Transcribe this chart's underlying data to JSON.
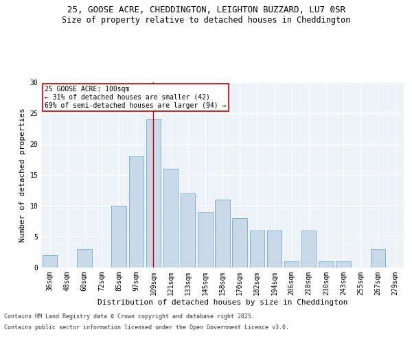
{
  "title1": "25, GOOSE ACRE, CHEDDINGTON, LEIGHTON BUZZARD, LU7 0SR",
  "title2": "Size of property relative to detached houses in Cheddington",
  "xlabel": "Distribution of detached houses by size in Cheddington",
  "ylabel": "Number of detached properties",
  "categories": [
    "36sqm",
    "48sqm",
    "60sqm",
    "72sqm",
    "85sqm",
    "97sqm",
    "109sqm",
    "121sqm",
    "133sqm",
    "145sqm",
    "158sqm",
    "170sqm",
    "182sqm",
    "194sqm",
    "206sqm",
    "218sqm",
    "230sqm",
    "243sqm",
    "255sqm",
    "267sqm",
    "279sqm"
  ],
  "values": [
    2,
    0,
    3,
    0,
    10,
    18,
    24,
    16,
    12,
    9,
    11,
    8,
    6,
    6,
    1,
    6,
    1,
    1,
    0,
    3,
    0
  ],
  "bar_color": "#c9d9e8",
  "bar_edge_color": "#6baed6",
  "vline_x": 6,
  "vline_color": "#cc0000",
  "annotation_text": "25 GOOSE ACRE: 100sqm\n← 31% of detached houses are smaller (42)\n69% of semi-detached houses are larger (94) →",
  "annotation_box_color": "#ffffff",
  "annotation_box_edge": "#cc0000",
  "ylim": [
    0,
    30
  ],
  "yticks": [
    0,
    5,
    10,
    15,
    20,
    25,
    30
  ],
  "bg_color": "#eef3f8",
  "footer1": "Contains HM Land Registry data © Crown copyright and database right 2025.",
  "footer2": "Contains public sector information licensed under the Open Government Licence v3.0.",
  "title_fontsize": 9,
  "subtitle_fontsize": 8.5,
  "axis_label_fontsize": 8,
  "tick_fontsize": 7,
  "annotation_fontsize": 7,
  "footer_fontsize": 6
}
